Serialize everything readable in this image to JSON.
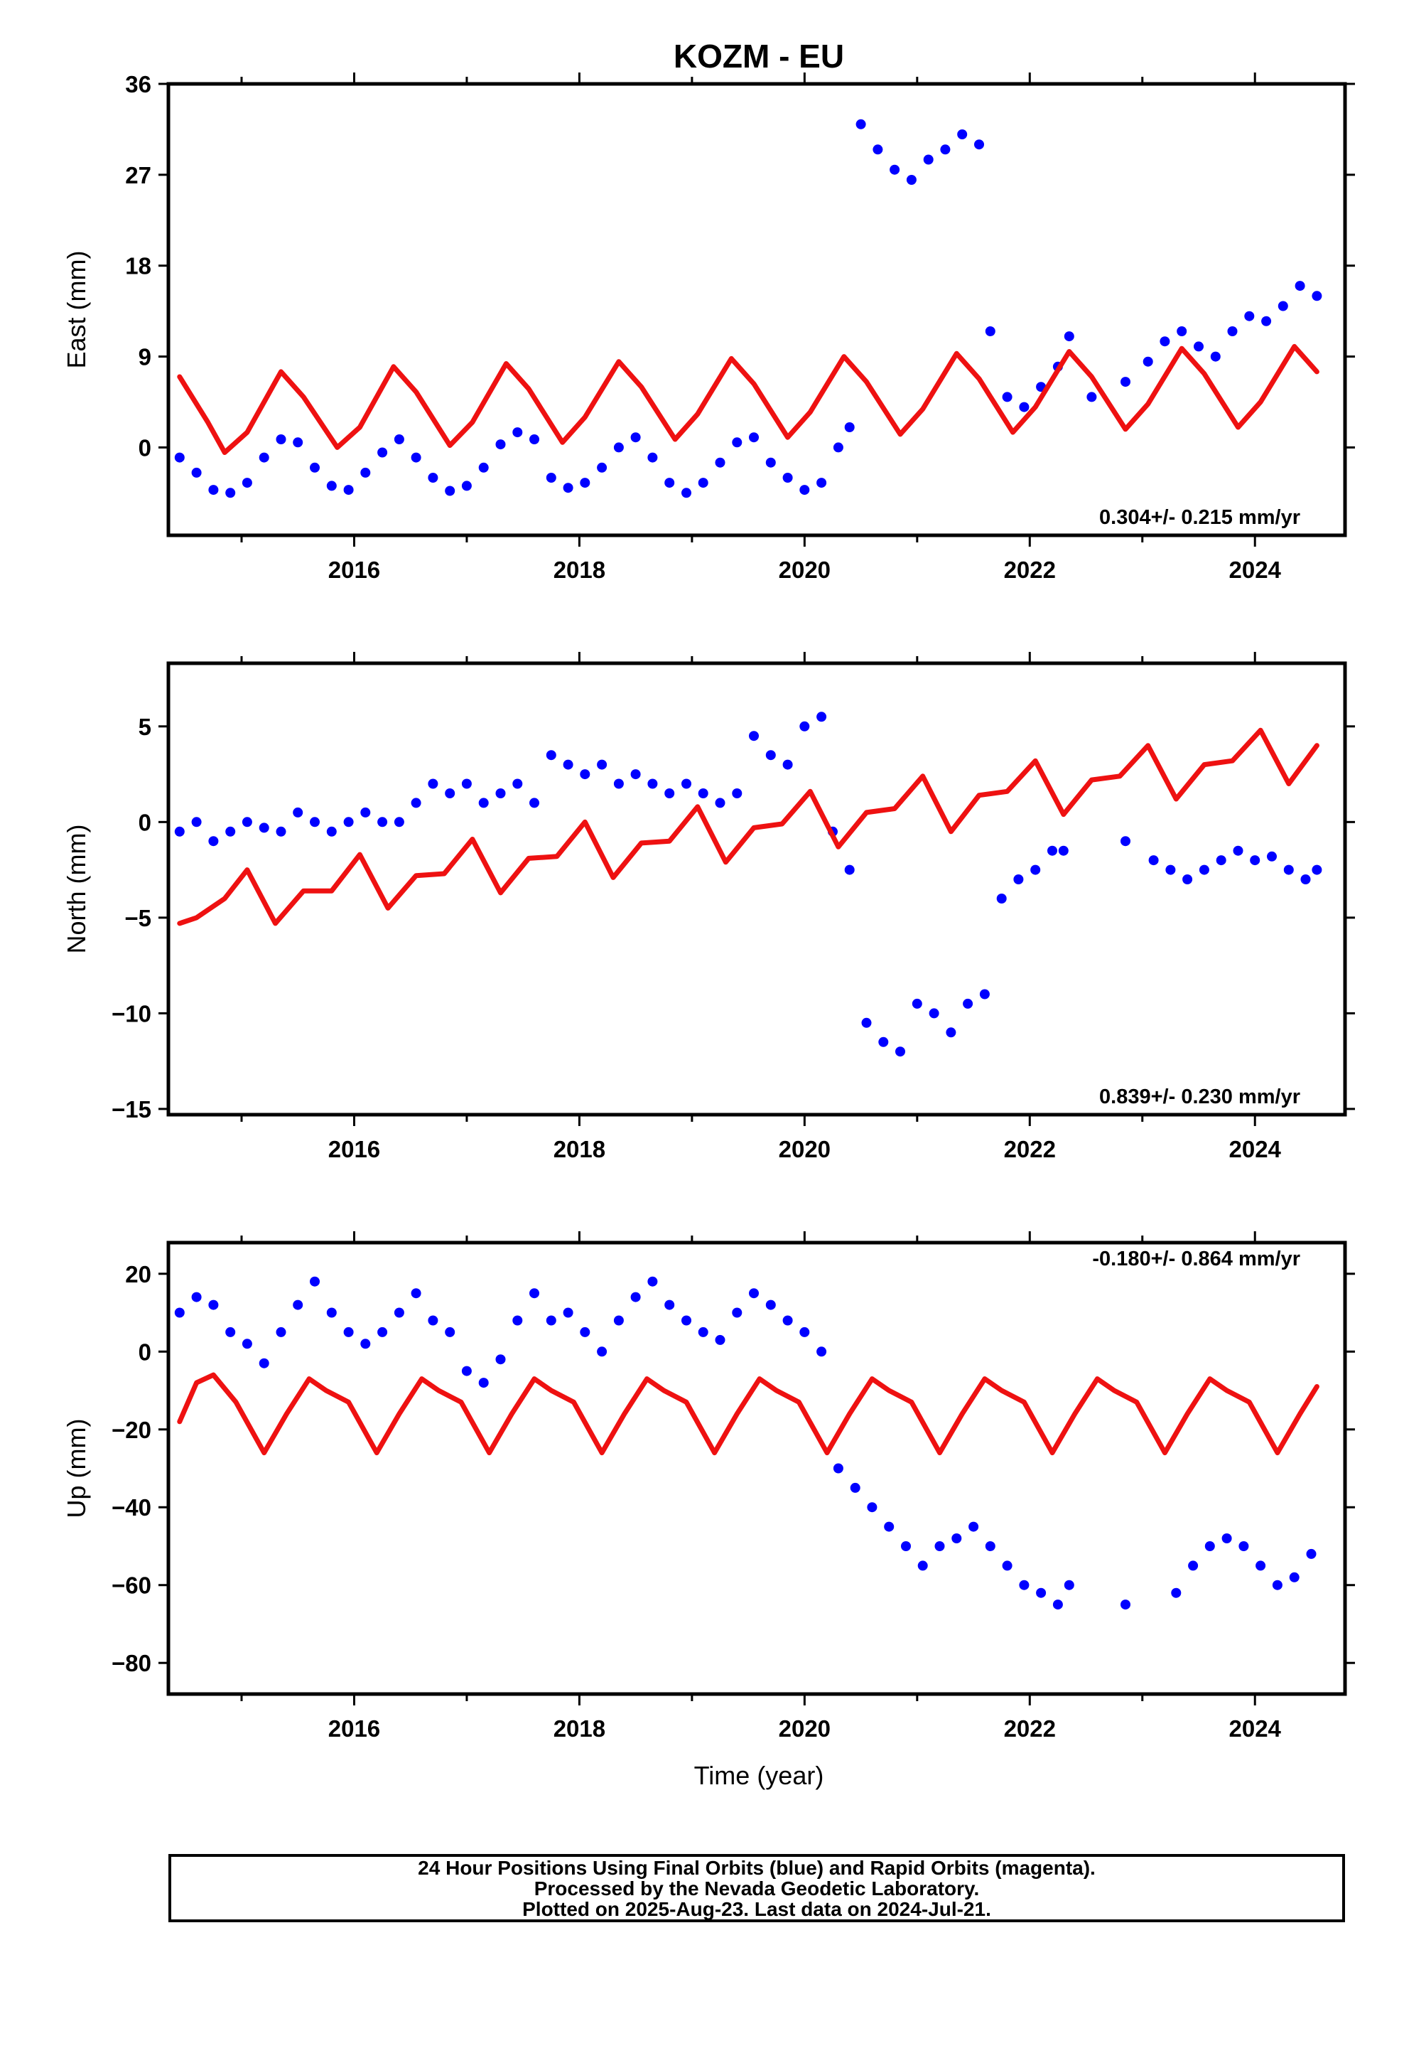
{
  "figure": {
    "title": "KOZM - EU",
    "xlabel": "Time (year)",
    "footer": [
      "24 Hour Positions Using Final Orbits (blue) and Rapid Orbits (magenta).",
      "Processed by the Nevada Geodetic Laboratory.",
      "Plotted on 2025-Aug-23. Last data on 2024-Jul-21."
    ],
    "colors": {
      "final_orbits": "#0000ff",
      "model": "#ee1111",
      "frame": "#000000"
    }
  },
  "chart_data": [
    {
      "type": "scatter",
      "panel": "east",
      "ylabel": "East (mm)",
      "rate_label": "0.304+/- 0.215 mm/yr",
      "xlim": [
        2014.35,
        2024.8
      ],
      "ylim": [
        -8.7,
        36
      ],
      "yticks": [
        0,
        9,
        18,
        27,
        36
      ],
      "xticks": [
        2016,
        2018,
        2020,
        2022,
        2024
      ],
      "series": [
        {
          "kind": "points",
          "color": "#0000ff",
          "x": [
            2014.45,
            2014.6,
            2014.75,
            2014.9,
            2015.05,
            2015.2,
            2015.35,
            2015.5,
            2015.65,
            2015.8,
            2015.95,
            2016.1,
            2016.25,
            2016.4,
            2016.55,
            2016.7,
            2016.85,
            2017.0,
            2017.15,
            2017.3,
            2017.45,
            2017.6,
            2017.75,
            2017.9,
            2018.05,
            2018.2,
            2018.35,
            2018.5,
            2018.65,
            2018.8,
            2018.95,
            2019.1,
            2019.25,
            2019.4,
            2019.55,
            2019.7,
            2019.85,
            2020.0,
            2020.15,
            2020.3,
            2020.4,
            2020.5,
            2020.65,
            2020.8,
            2020.95,
            2021.1,
            2021.25,
            2021.4,
            2021.55,
            2021.65,
            2021.8,
            2021.95,
            2022.1,
            2022.25,
            2022.35,
            2022.55,
            2022.85,
            2023.05,
            2023.2,
            2023.35,
            2023.5,
            2023.65,
            2023.8,
            2023.95,
            2024.1,
            2024.25,
            2024.4,
            2024.55
          ],
          "y": [
            -1.0,
            -2.5,
            -4.2,
            -4.5,
            -3.5,
            -1.0,
            0.8,
            0.5,
            -2.0,
            -3.8,
            -4.2,
            -2.5,
            -0.5,
            0.8,
            -1.0,
            -3.0,
            -4.3,
            -3.8,
            -2.0,
            0.3,
            1.5,
            0.8,
            -3.0,
            -4.0,
            -3.5,
            -2.0,
            0.0,
            1.0,
            -1.0,
            -3.5,
            -4.5,
            -3.5,
            -1.5,
            0.5,
            1.0,
            -1.5,
            -3.0,
            -4.2,
            -3.5,
            0.0,
            2.0,
            32.0,
            29.5,
            27.5,
            26.5,
            28.5,
            29.5,
            31.0,
            30.0,
            11.5,
            5.0,
            4.0,
            6.0,
            8.0,
            11.0,
            5.0,
            6.5,
            8.5,
            10.5,
            11.5,
            10.0,
            9.0,
            11.5,
            13.0,
            12.5,
            14.0,
            16.0,
            15.0
          ]
        },
        {
          "kind": "model",
          "color": "#ee1111",
          "x": [
            2014.45,
            2014.7,
            2014.85,
            2015.05,
            2015.35,
            2015.55,
            2015.85,
            2016.05,
            2016.35,
            2016.55,
            2016.85,
            2017.05,
            2017.35,
            2017.55,
            2017.85,
            2018.05,
            2018.35,
            2018.55,
            2018.85,
            2019.05,
            2019.35,
            2019.55,
            2019.85,
            2020.05,
            2020.35,
            2020.55,
            2020.85,
            2021.05,
            2021.35,
            2021.55,
            2021.85,
            2022.05,
            2022.35,
            2022.55,
            2022.85,
            2023.05,
            2023.35,
            2023.55,
            2023.85,
            2024.05,
            2024.35,
            2024.55
          ],
          "y": [
            7.0,
            2.5,
            -0.5,
            1.5,
            7.5,
            5.0,
            0.0,
            2.0,
            8.0,
            5.5,
            0.2,
            2.5,
            8.3,
            5.8,
            0.5,
            3.0,
            8.5,
            6.0,
            0.8,
            3.3,
            8.8,
            6.3,
            1.0,
            3.5,
            9.0,
            6.5,
            1.3,
            3.8,
            9.3,
            6.8,
            1.5,
            4.0,
            9.5,
            7.0,
            1.8,
            4.3,
            9.8,
            7.3,
            2.0,
            4.5,
            10.0,
            7.5
          ]
        }
      ]
    },
    {
      "type": "scatter",
      "panel": "north",
      "ylabel": "North (mm)",
      "rate_label": "0.839+/- 0.230 mm/yr",
      "xlim": [
        2014.35,
        2024.8
      ],
      "ylim": [
        -15.3,
        8.3
      ],
      "yticks": [
        -15,
        -10,
        -5,
        0,
        5
      ],
      "xticks": [
        2016,
        2018,
        2020,
        2022,
        2024
      ],
      "series": [
        {
          "kind": "points",
          "color": "#0000ff",
          "x": [
            2014.45,
            2014.6,
            2014.75,
            2014.9,
            2015.05,
            2015.2,
            2015.35,
            2015.5,
            2015.65,
            2015.8,
            2015.95,
            2016.1,
            2016.25,
            2016.4,
            2016.55,
            2016.7,
            2016.85,
            2017.0,
            2017.15,
            2017.3,
            2017.45,
            2017.6,
            2017.75,
            2017.9,
            2018.05,
            2018.2,
            2018.35,
            2018.5,
            2018.65,
            2018.8,
            2018.95,
            2019.1,
            2019.25,
            2019.4,
            2019.55,
            2019.7,
            2019.85,
            2020.0,
            2020.15,
            2020.25,
            2020.4,
            2020.55,
            2020.7,
            2020.85,
            2021.0,
            2021.15,
            2021.3,
            2021.45,
            2021.6,
            2021.75,
            2021.9,
            2022.05,
            2022.2,
            2022.3,
            2022.85,
            2023.1,
            2023.25,
            2023.4,
            2023.55,
            2023.7,
            2023.85,
            2024.0,
            2024.15,
            2024.3,
            2024.45,
            2024.55
          ],
          "y": [
            -0.5,
            0.0,
            -1.0,
            -0.5,
            0.0,
            -0.3,
            -0.5,
            0.5,
            0.0,
            -0.5,
            0.0,
            0.5,
            0.0,
            0.0,
            1.0,
            2.0,
            1.5,
            2.0,
            1.0,
            1.5,
            2.0,
            1.0,
            3.5,
            3.0,
            2.5,
            3.0,
            2.0,
            2.5,
            2.0,
            1.5,
            2.0,
            1.5,
            1.0,
            1.5,
            4.5,
            3.5,
            3.0,
            5.0,
            5.5,
            -0.5,
            -2.5,
            -10.5,
            -11.5,
            -12.0,
            -9.5,
            -10.0,
            -11.0,
            -9.5,
            -9.0,
            -4.0,
            -3.0,
            -2.5,
            -1.5,
            -1.5,
            -1.0,
            -2.0,
            -2.5,
            -3.0,
            -2.5,
            -2.0,
            -1.5,
            -2.0,
            -1.8,
            -2.5,
            -3.0,
            -2.5
          ]
        },
        {
          "kind": "model",
          "color": "#ee1111",
          "x": [
            2014.45,
            2014.6,
            2014.85,
            2015.05,
            2015.3,
            2015.55,
            2015.8,
            2016.05,
            2016.3,
            2016.55,
            2016.8,
            2017.05,
            2017.3,
            2017.55,
            2017.8,
            2018.05,
            2018.3,
            2018.55,
            2018.8,
            2019.05,
            2019.3,
            2019.55,
            2019.8,
            2020.05,
            2020.3,
            2020.55,
            2020.8,
            2021.05,
            2021.3,
            2021.55,
            2021.8,
            2022.05,
            2022.3,
            2022.55,
            2022.8,
            2023.05,
            2023.3,
            2023.55,
            2023.8,
            2024.05,
            2024.3,
            2024.55
          ],
          "y": [
            -5.3,
            -5.0,
            -4.0,
            -2.5,
            -5.3,
            -3.6,
            -3.6,
            -1.7,
            -4.5,
            -2.8,
            -2.7,
            -0.9,
            -3.7,
            -1.9,
            -1.8,
            0.0,
            -2.9,
            -1.1,
            -1.0,
            0.8,
            -2.1,
            -0.3,
            -0.1,
            1.6,
            -1.3,
            0.5,
            0.7,
            2.4,
            -0.5,
            1.4,
            1.6,
            3.2,
            0.4,
            2.2,
            2.4,
            4.0,
            1.2,
            3.0,
            3.2,
            4.8,
            2.0,
            4.0
          ]
        }
      ]
    },
    {
      "type": "scatter",
      "panel": "up",
      "ylabel": "Up (mm)",
      "rate_label": "-0.180+/- 0.864 mm/yr",
      "xlim": [
        2014.35,
        2024.8
      ],
      "ylim": [
        -88,
        28
      ],
      "yticks": [
        -80,
        -60,
        -40,
        -20,
        0,
        20
      ],
      "xticks": [
        2016,
        2018,
        2020,
        2022,
        2024
      ],
      "series": [
        {
          "kind": "points",
          "color": "#0000ff",
          "x": [
            2014.45,
            2014.6,
            2014.75,
            2014.9,
            2015.05,
            2015.2,
            2015.35,
            2015.5,
            2015.65,
            2015.8,
            2015.95,
            2016.1,
            2016.25,
            2016.4,
            2016.55,
            2016.7,
            2016.85,
            2017.0,
            2017.15,
            2017.3,
            2017.45,
            2017.6,
            2017.75,
            2017.9,
            2018.05,
            2018.2,
            2018.35,
            2018.5,
            2018.65,
            2018.8,
            2018.95,
            2019.1,
            2019.25,
            2019.4,
            2019.55,
            2019.7,
            2019.85,
            2020.0,
            2020.15,
            2020.3,
            2020.45,
            2020.6,
            2020.75,
            2020.9,
            2021.05,
            2021.2,
            2021.35,
            2021.5,
            2021.65,
            2021.8,
            2021.95,
            2022.1,
            2022.25,
            2022.35,
            2022.85,
            2023.3,
            2023.45,
            2023.6,
            2023.75,
            2023.9,
            2024.05,
            2024.2,
            2024.35,
            2024.5
          ],
          "y": [
            10.0,
            14.0,
            12.0,
            5.0,
            2.0,
            -3.0,
            5.0,
            12.0,
            18.0,
            10.0,
            5.0,
            2.0,
            5.0,
            10.0,
            15.0,
            8.0,
            5.0,
            -5.0,
            -8.0,
            -2.0,
            8.0,
            15.0,
            8.0,
            10.0,
            5.0,
            0.0,
            8.0,
            14.0,
            18.0,
            12.0,
            8.0,
            5.0,
            3.0,
            10.0,
            15.0,
            12.0,
            8.0,
            5.0,
            0.0,
            -30.0,
            -35.0,
            -40.0,
            -45.0,
            -50.0,
            -55.0,
            -50.0,
            -48.0,
            -45.0,
            -50.0,
            -55.0,
            -60.0,
            -62.0,
            -65.0,
            -60.0,
            -65.0,
            -62.0,
            -55.0,
            -50.0,
            -48.0,
            -50.0,
            -55.0,
            -60.0,
            -58.0,
            -52.0
          ]
        },
        {
          "kind": "model",
          "color": "#ee1111",
          "x": [
            2014.45,
            2014.6,
            2014.75,
            2014.95,
            2015.2,
            2015.4,
            2015.6,
            2015.75,
            2015.95,
            2016.2,
            2016.4,
            2016.6,
            2016.75,
            2016.95,
            2017.2,
            2017.4,
            2017.6,
            2017.75,
            2017.95,
            2018.2,
            2018.4,
            2018.6,
            2018.75,
            2018.95,
            2019.2,
            2019.4,
            2019.6,
            2019.75,
            2019.95,
            2020.2,
            2020.4,
            2020.6,
            2020.75,
            2020.95,
            2021.2,
            2021.4,
            2021.6,
            2021.75,
            2021.95,
            2022.2,
            2022.4,
            2022.6,
            2022.75,
            2022.95,
            2023.2,
            2023.4,
            2023.6,
            2023.75,
            2023.95,
            2024.2,
            2024.4,
            2024.55
          ],
          "y": [
            -18.0,
            -8.0,
            -6.0,
            -13.0,
            -26.0,
            -16.0,
            -7.0,
            -10.0,
            -13.0,
            -26.0,
            -16.0,
            -7.0,
            -10.0,
            -13.0,
            -26.0,
            -16.0,
            -7.0,
            -10.0,
            -13.0,
            -26.0,
            -16.0,
            -7.0,
            -10.0,
            -13.0,
            -26.0,
            -16.0,
            -7.0,
            -10.0,
            -13.0,
            -26.0,
            -16.0,
            -7.0,
            -10.0,
            -13.0,
            -26.0,
            -16.0,
            -7.0,
            -10.0,
            -13.0,
            -26.0,
            -16.0,
            -7.0,
            -10.0,
            -13.0,
            -26.0,
            -16.0,
            -7.0,
            -10.0,
            -13.0,
            -26.0,
            -16.0,
            -9.0
          ]
        }
      ]
    }
  ]
}
